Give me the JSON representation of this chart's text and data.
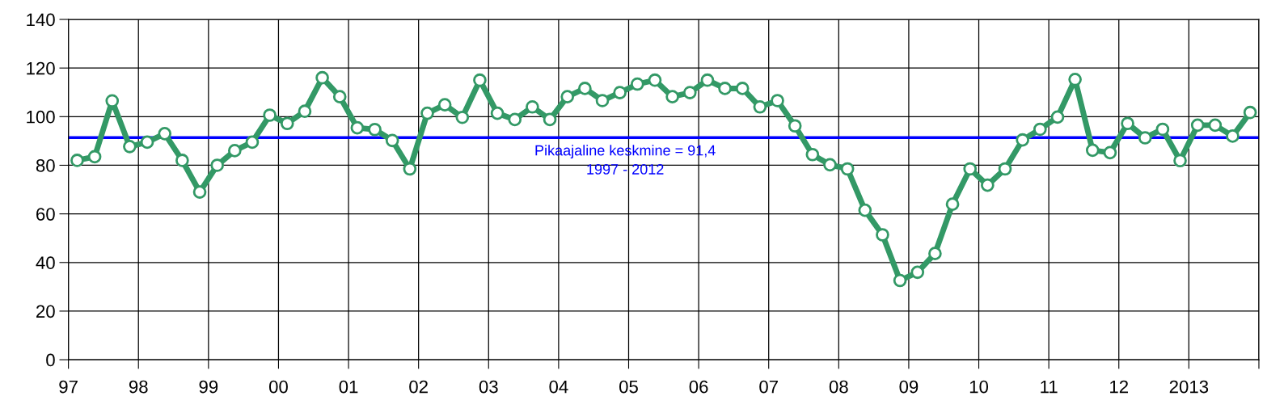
{
  "chart_data": {
    "type": "line",
    "x": [
      1997.125,
      1997.375,
      1997.625,
      1997.875,
      1998.125,
      1998.375,
      1998.625,
      1998.875,
      1999.125,
      1999.375,
      1999.625,
      1999.875,
      2000.125,
      2000.375,
      2000.625,
      2000.875,
      2001.125,
      2001.375,
      2001.625,
      2001.875,
      2002.125,
      2002.375,
      2002.625,
      2002.875,
      2003.125,
      2003.375,
      2003.625,
      2003.875,
      2004.125,
      2004.375,
      2004.625,
      2004.875,
      2005.125,
      2005.375,
      2005.625,
      2005.875,
      2006.125,
      2006.375,
      2006.625,
      2006.875,
      2007.125,
      2007.375,
      2007.625,
      2007.875,
      2008.125,
      2008.375,
      2008.625,
      2008.875,
      2009.125,
      2009.375,
      2009.625,
      2009.875,
      2010.125,
      2010.375,
      2010.625,
      2010.875,
      2011.125,
      2011.375,
      2011.625,
      2011.875,
      2012.125,
      2012.375,
      2012.625,
      2012.875,
      2013.125,
      2013.375,
      2013.625,
      2013.875
    ],
    "series": [
      {
        "color": "#339966",
        "values": [
          82,
          83.5,
          106.5,
          87.7,
          89.5,
          93,
          82,
          69,
          80,
          86,
          89.5,
          100.6,
          97.2,
          102.2,
          116,
          108.2,
          95.4,
          94.7,
          90.2,
          78.5,
          101.4,
          104.9,
          99.7,
          115,
          101.4,
          98.8,
          104,
          98.8,
          108.2,
          111.6,
          106.6,
          109.9,
          113.4,
          115,
          108.2,
          109.9,
          115,
          111.6,
          111.6,
          104,
          106.6,
          96.2,
          84.4,
          80.2,
          78.5,
          61.5,
          51.4,
          32.6,
          36,
          43.7,
          64,
          78.5,
          71.8,
          78.5,
          90.4,
          94.8,
          99.8,
          115.3,
          86.2,
          85.2,
          97.2,
          91.3,
          94.8,
          81.9,
          96.5,
          96.5,
          92,
          101.7
        ]
      }
    ],
    "xlim": [
      1997,
      2014
    ],
    "xticks": [
      {
        "value": 1997,
        "label": "97"
      },
      {
        "value": 1998,
        "label": "98"
      },
      {
        "value": 1999,
        "label": "99"
      },
      {
        "value": 2000,
        "label": "00"
      },
      {
        "value": 2001,
        "label": "01"
      },
      {
        "value": 2002,
        "label": "02"
      },
      {
        "value": 2003,
        "label": "03"
      },
      {
        "value": 2004,
        "label": "04"
      },
      {
        "value": 2005,
        "label": "05"
      },
      {
        "value": 2006,
        "label": "06"
      },
      {
        "value": 2007,
        "label": "07"
      },
      {
        "value": 2008,
        "label": "08"
      },
      {
        "value": 2009,
        "label": "09"
      },
      {
        "value": 2010,
        "label": "10"
      },
      {
        "value": 2011,
        "label": "11"
      },
      {
        "value": 2012,
        "label": "12"
      },
      {
        "value": 2013,
        "label": "2013"
      },
      {
        "value": 2014,
        "label": null
      }
    ],
    "ylim": [
      0,
      140
    ],
    "yticks": [
      0,
      20,
      40,
      60,
      80,
      100,
      120,
      140
    ],
    "ref_lines": [
      {
        "axis": "y",
        "value": 91.4,
        "label": "Pikaajaline keskmine = 91,4\n1997 - 2012",
        "color": "#0000ff"
      }
    ],
    "grid": true,
    "legend": false,
    "marker": "circle",
    "line_style": "solid"
  }
}
